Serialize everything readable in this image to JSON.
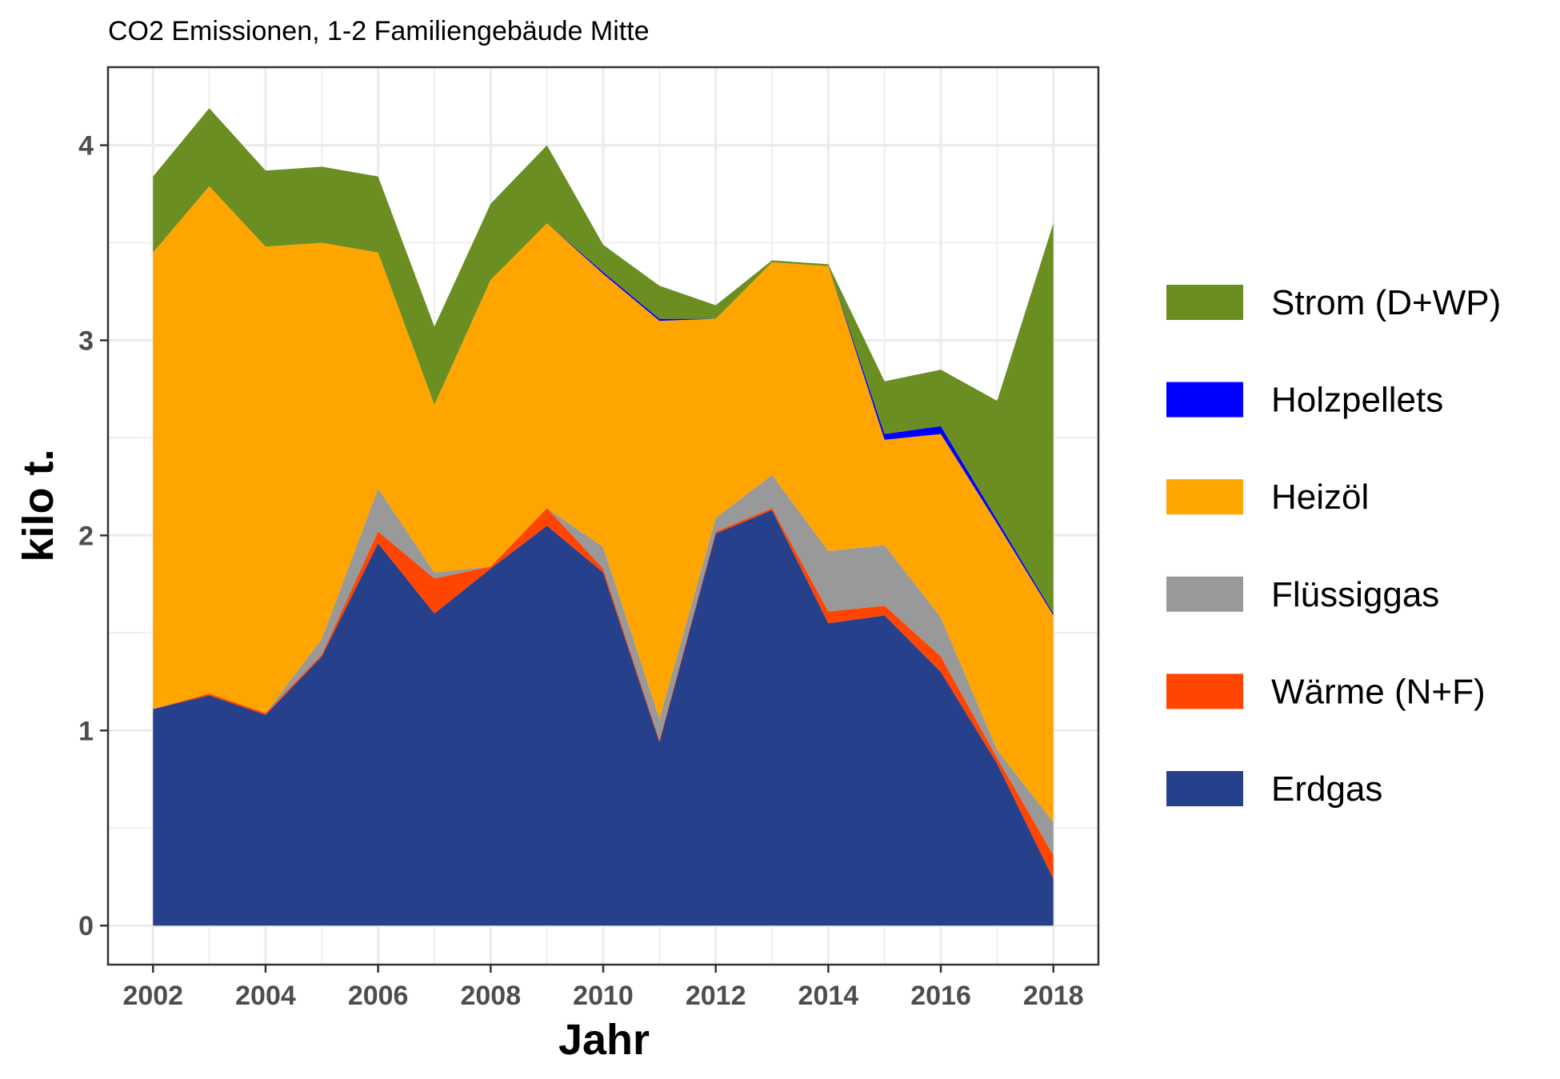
{
  "chart_data": {
    "type": "area",
    "stacked": true,
    "title": "CO2 Emissionen, 1-2 Familiengebäude Mitte",
    "xlabel": "Jahr",
    "ylabel": "kilo t.",
    "xlim": [
      2001.2,
      2018.8
    ],
    "ylim": [
      -0.2,
      4.4
    ],
    "x": [
      2002,
      2003,
      2004,
      2005,
      2006,
      2007,
      2008,
      2009,
      2010,
      2011,
      2012,
      2013,
      2014,
      2015,
      2016,
      2017,
      2018
    ],
    "x_ticks": [
      2002,
      2004,
      2006,
      2008,
      2010,
      2012,
      2014,
      2016,
      2018
    ],
    "y_ticks": [
      0,
      1,
      2,
      3,
      4
    ],
    "grid": true,
    "legend_position": "right",
    "series": [
      {
        "name": "Erdgas",
        "color": "#27408B",
        "values": [
          1.11,
          1.18,
          1.08,
          1.38,
          1.96,
          1.6,
          1.83,
          2.05,
          1.81,
          0.94,
          2.01,
          2.13,
          1.55,
          1.59,
          1.3,
          0.83,
          0.24
        ]
      },
      {
        "name": "Wärme (N+F)",
        "color": "#FF4500",
        "values": [
          0.0,
          0.01,
          0.01,
          0.01,
          0.06,
          0.18,
          0.01,
          0.09,
          0.02,
          0.01,
          0.01,
          0.01,
          0.06,
          0.05,
          0.08,
          0.03,
          0.12
        ]
      },
      {
        "name": "Flüssiggas",
        "color": "#999999",
        "values": [
          0.0,
          0.0,
          0.0,
          0.08,
          0.22,
          0.03,
          0.0,
          0.0,
          0.11,
          0.11,
          0.07,
          0.17,
          0.31,
          0.31,
          0.2,
          0.04,
          0.17
        ]
      },
      {
        "name": "Heizöl",
        "color": "#FFA500",
        "values": [
          2.34,
          2.6,
          2.39,
          2.03,
          1.21,
          0.86,
          1.47,
          1.46,
          1.4,
          2.04,
          1.02,
          1.09,
          1.46,
          0.54,
          0.94,
          1.16,
          1.06
        ]
      },
      {
        "name": "Holzpellets",
        "color": "#0000FF",
        "values": [
          0.0,
          0.0,
          0.0,
          0.0,
          0.0,
          0.0,
          0.0,
          0.0,
          0.01,
          0.01,
          0.0,
          0.0,
          0.0,
          0.03,
          0.04,
          0.02,
          0.01
        ]
      },
      {
        "name": "Strom (D+WP)",
        "color": "#6B8E23",
        "values": [
          0.39,
          0.4,
          0.39,
          0.39,
          0.39,
          0.4,
          0.39,
          0.4,
          0.14,
          0.17,
          0.07,
          0.01,
          0.01,
          0.27,
          0.29,
          0.61,
          2.0
        ]
      }
    ],
    "legend_order": [
      "Strom (D+WP)",
      "Holzpellets",
      "Heizöl",
      "Flüssiggas",
      "Wärme (N+F)",
      "Erdgas"
    ]
  }
}
